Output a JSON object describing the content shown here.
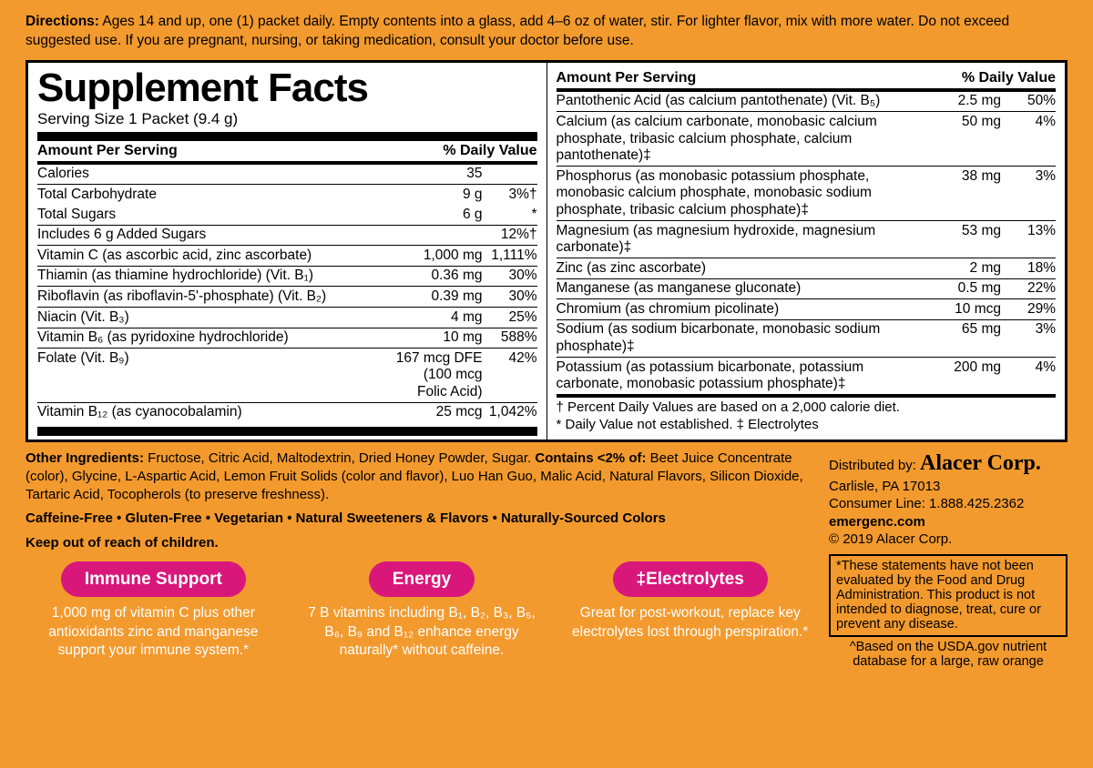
{
  "colors": {
    "page_bg": "#f39a2e",
    "panel_bg": "#ffffff",
    "rule": "#000000",
    "badge_bg": "#d9177a",
    "badge_text": "#ffffff"
  },
  "directions": {
    "label": "Directions:",
    "text": "Ages 14 and up, one (1) packet daily. Empty contents into a glass, add 4–6 oz of water, stir. For lighter flavor, mix with more water. Do not exceed suggested use. If you are pregnant, nursing, or taking medication, consult your doctor before use."
  },
  "panel": {
    "title": "Supplement Facts",
    "serving": "Serving Size 1 Packet (9.4 g)",
    "header_amount": "Amount Per Serving",
    "header_dv": "% Daily Value",
    "left_rows": [
      {
        "name": "Calories",
        "amt": "35",
        "dv": ""
      },
      {
        "name": "Total Carbohydrate",
        "amt": "9 g",
        "dv": "3%†"
      },
      {
        "name": "Total Sugars",
        "amt": "6 g",
        "dv": "*",
        "indent": 1,
        "noTop": true
      },
      {
        "name": "Includes 6 g Added Sugars",
        "amt": "",
        "dv": "12%†",
        "indent": 2
      },
      {
        "name": "Vitamin C (as ascorbic acid, zinc ascorbate)",
        "amt": "1,000 mg",
        "dv": "1,111%"
      },
      {
        "name": "Thiamin (as thiamine hydrochloride) (Vit. B₁)",
        "amt": "0.36 mg",
        "dv": "30%"
      },
      {
        "name": "Riboflavin (as riboflavin-5'-phosphate) (Vit. B₂)",
        "amt": "0.39 mg",
        "dv": "30%"
      },
      {
        "name": "Niacin (Vit. B₃)",
        "amt": "4 mg",
        "dv": "25%"
      },
      {
        "name": "Vitamin B₆ (as pyridoxine hydrochloride)",
        "amt": "10 mg",
        "dv": "588%"
      },
      {
        "name": "Folate (Vit. B₉)",
        "amt": "167 mcg DFE\n(100 mcg Folic Acid)",
        "dv": "42%"
      },
      {
        "name": "Vitamin B₁₂ (as cyanocobalamin)",
        "amt": "25 mcg",
        "dv": "1,042%"
      }
    ],
    "right_rows": [
      {
        "name": "Pantothenic Acid (as calcium pantothenate) (Vit. B₅)",
        "amt": "2.5 mg",
        "dv": "50%"
      },
      {
        "name": "Calcium (as calcium carbonate, monobasic calcium phosphate, tribasic calcium phosphate, calcium pantothenate)‡",
        "amt": "50 mg",
        "dv": "4%"
      },
      {
        "name": "Phosphorus (as monobasic potassium phosphate, monobasic calcium phosphate, monobasic sodium phosphate, tribasic calcium phosphate)‡",
        "amt": "38 mg",
        "dv": "3%"
      },
      {
        "name": "Magnesium (as magnesium hydroxide, magnesium carbonate)‡",
        "amt": "53 mg",
        "dv": "13%"
      },
      {
        "name": "Zinc (as zinc ascorbate)",
        "amt": "2 mg",
        "dv": "18%"
      },
      {
        "name": "Manganese (as manganese gluconate)",
        "amt": "0.5 mg",
        "dv": "22%"
      },
      {
        "name": "Chromium (as chromium picolinate)",
        "amt": "10 mcg",
        "dv": "29%"
      },
      {
        "name": "Sodium (as sodium bicarbonate, monobasic sodium phosphate)‡",
        "amt": "65 mg",
        "dv": "3%"
      },
      {
        "name": "Potassium (as potassium bicarbonate, potassium carbonate, monobasic potassium phosphate)‡",
        "amt": "200 mg",
        "dv": "4%"
      }
    ],
    "footnote1": "† Percent Daily Values are based on a 2,000 calorie diet.",
    "footnote2": "* Daily Value not established.    ‡ Electrolytes"
  },
  "other": {
    "label": "Other Ingredients:",
    "text": " Fructose, Citric Acid, Maltodextrin, Dried Honey Powder, Sugar. ",
    "contains_label": "Contains <2% of:",
    "contains_text": " Beet Juice Concentrate (color), Glycine, L-Aspartic Acid, Lemon Fruit Solids (color and flavor), Luo Han Guo, Malic Acid, Natural Flavors, Silicon Dioxide, Tartaric Acid, Tocopherols (to preserve freshness).",
    "tags": "Caffeine-Free • Gluten-Free • Vegetarian • Natural Sweeteners & Flavors • Naturally-Sourced Colors",
    "keepout": "Keep out of reach of children."
  },
  "dist": {
    "label": "Distributed by:",
    "brand": "Alacer Corp.",
    "addr": "Carlisle, PA 17013",
    "phone": "Consumer Line: 1.888.425.2362",
    "web": "emergenc.com",
    "copyright": "© 2019 Alacer Corp.",
    "disclaimer": "*These statements have not been evaluated by the Food and Drug Administration. This product is not intended to diagnose, treat, cure or prevent any disease.",
    "usda": "^Based on the USDA.gov nutrient database for a large, raw orange"
  },
  "badges": [
    {
      "title": "Immune Support",
      "desc": "1,000 mg of vitamin C plus other antioxidants zinc and manganese support your immune system.*"
    },
    {
      "title": "Energy",
      "desc": "7 B vitamins including B₁, B₂, B₃, B₅, B₆, B₉ and B₁₂ enhance energy naturally* without caffeine."
    },
    {
      "title": "‡Electrolytes",
      "desc": "Great for post-workout, replace key electrolytes lost through perspiration.*"
    }
  ]
}
